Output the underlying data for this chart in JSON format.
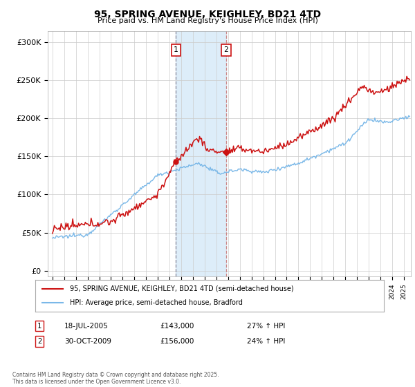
{
  "title": "95, SPRING AVENUE, KEIGHLEY, BD21 4TD",
  "subtitle": "Price paid vs. HM Land Registry's House Price Index (HPI)",
  "ylabel_ticks": [
    "£0",
    "£50K",
    "£100K",
    "£150K",
    "£200K",
    "£250K",
    "£300K"
  ],
  "ytick_values": [
    0,
    50000,
    100000,
    150000,
    200000,
    250000,
    300000
  ],
  "ylim": [
    -8000,
    315000
  ],
  "xlim_start": 1994.6,
  "xlim_end": 2025.6,
  "sale1_year": 2005.54,
  "sale1_price": 143000,
  "sale1_label": "1",
  "sale2_year": 2009.83,
  "sale2_price": 156000,
  "sale2_label": "2",
  "hpi_line_color": "#7ab8e8",
  "price_line_color": "#cc1111",
  "sale_marker_color": "#cc1111",
  "shaded_region_color": "#d8eaf8",
  "shaded_x1": 2005.54,
  "shaded_x2": 2009.83,
  "vline1_color": "#888899",
  "vline2_color": "#cc8888",
  "legend_label1": "95, SPRING AVENUE, KEIGHLEY, BD21 4TD (semi-detached house)",
  "legend_label2": "HPI: Average price, semi-detached house, Bradford",
  "annot1_date": "18-JUL-2005",
  "annot1_price": "£143,000",
  "annot1_hpi": "27% ↑ HPI",
  "annot2_date": "30-OCT-2009",
  "annot2_price": "£156,000",
  "annot2_hpi": "24% ↑ HPI",
  "footer": "Contains HM Land Registry data © Crown copyright and database right 2025.\nThis data is licensed under the Open Government Licence v3.0.",
  "background_color": "#ffffff",
  "grid_color": "#cccccc"
}
